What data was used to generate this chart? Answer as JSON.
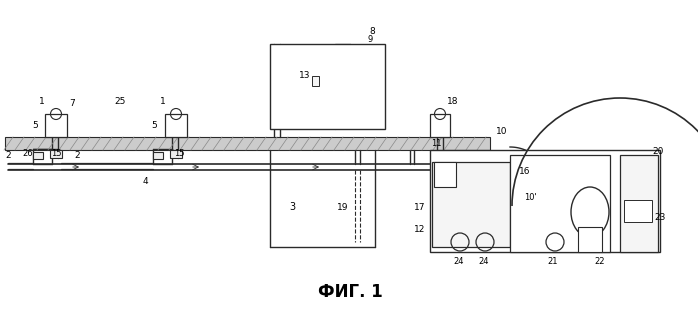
{
  "title": "ФИГ. 1",
  "title_fontsize": 12,
  "bg_color": "#ffffff",
  "line_color": "#2a2a2a",
  "fig_width": 6.98,
  "fig_height": 3.17,
  "dpi": 100
}
